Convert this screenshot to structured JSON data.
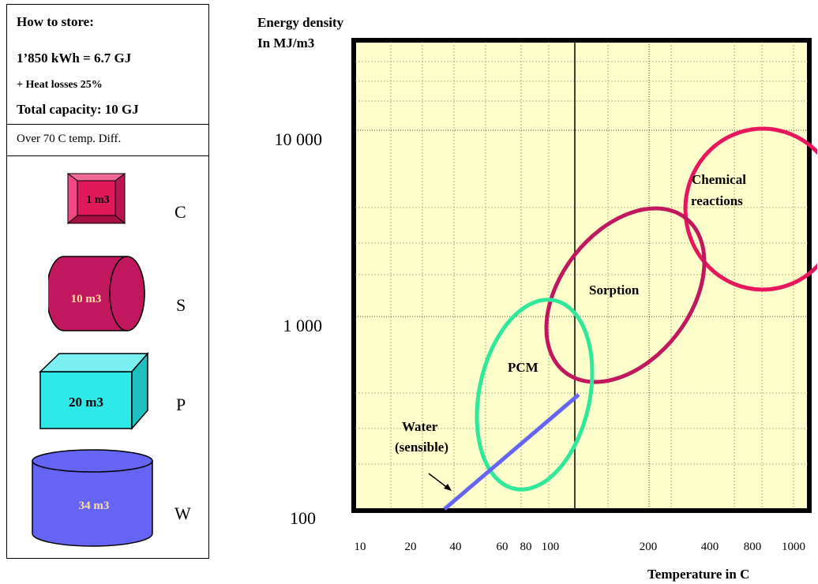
{
  "storage": {
    "heading": "How to store:",
    "energy": "1’850 kWh = 6.7 GJ",
    "losses": "+ Heat losses 25%",
    "total": "Total capacity: 10 GJ",
    "temp_diff": "Over  70 C temp. Diff.",
    "items": [
      {
        "volume": "1 m3",
        "letter": "C",
        "color": "#e0195a",
        "shape": "square-block"
      },
      {
        "volume": "10 m3",
        "letter": "S",
        "color": "#c0175e",
        "shape": "cylinder-horizontal"
      },
      {
        "volume": "20 m3",
        "letter": "P",
        "color": "#2fe8e8",
        "shape": "cube"
      },
      {
        "volume": "34 m3",
        "letter": "W",
        "color": "#6464f5",
        "shape": "cylinder-vertical"
      }
    ]
  },
  "chart_data": {
    "type": "diagram",
    "ylabel_line1": "Energy density",
    "ylabel_line2": "In MJ/m3",
    "xlabel": "Temperature in C",
    "x_ticks": [
      "10",
      "20",
      "40",
      "60",
      "80",
      "100",
      "200",
      "400",
      "800",
      "1000"
    ],
    "y_ticks": [
      "10 000",
      "1 000",
      "100"
    ],
    "regions": [
      {
        "name": "Chemical reactions",
        "line1": "Chemical",
        "line2": "reactions",
        "color": "#e8175d"
      },
      {
        "name": "Sorption",
        "color": "#c0175e"
      },
      {
        "name": "PCM",
        "color": "#2fe89a"
      },
      {
        "name": "Water (sensible)",
        "line1": "Water",
        "line2": "(sensible)",
        "color": "#6464f5"
      }
    ],
    "colors": {
      "plot_bg": "#ffffcc",
      "grid": "#000000"
    }
  }
}
